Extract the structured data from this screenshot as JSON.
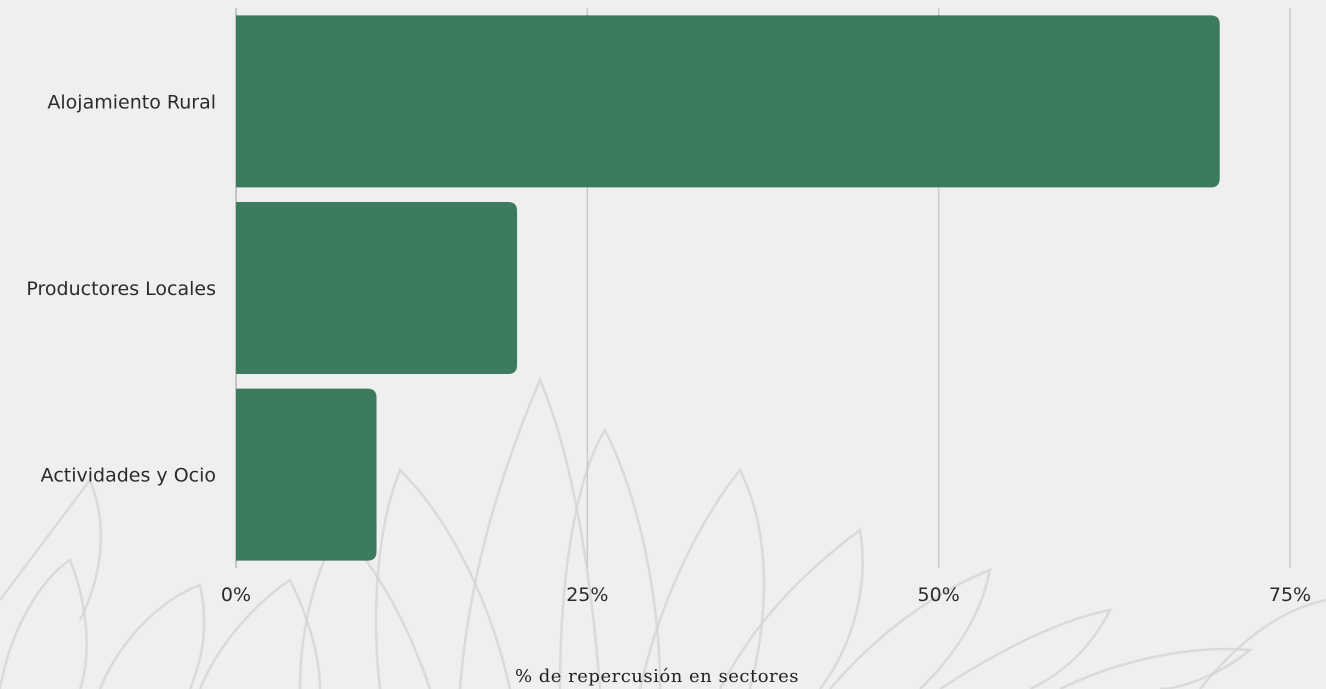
{
  "chart_data": {
    "type": "bar",
    "orientation": "horizontal",
    "categories": [
      "Alojamiento Rural",
      "Productores Locales",
      "Actividades y Ocio"
    ],
    "values": [
      70,
      20,
      10
    ],
    "xlabel": "% de repercusión en sectores",
    "ylabel": "",
    "xlim": [
      0,
      75
    ],
    "xticks": [
      0,
      25,
      50,
      75
    ],
    "xtick_labels": [
      "0%",
      "25%",
      "50%",
      "75%"
    ],
    "grid": true,
    "legend": "none",
    "bar_color": "#3c7b5e",
    "background_color": "#efefef"
  }
}
